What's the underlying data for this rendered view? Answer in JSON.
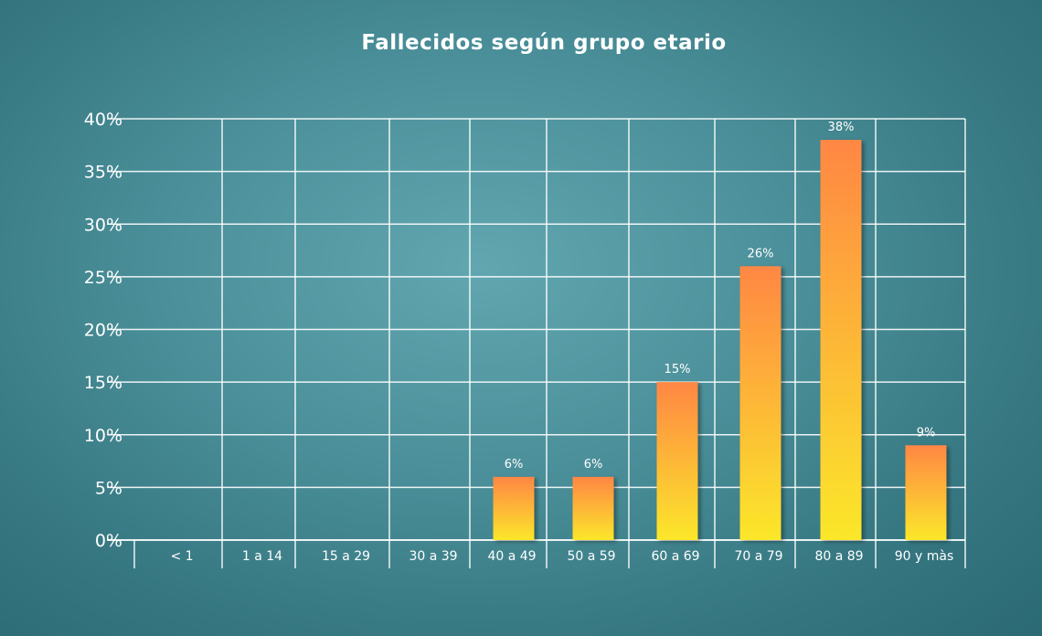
{
  "chart_data": {
    "type": "bar",
    "title": "Fallecidos según grupo etario",
    "xlabel": "",
    "ylabel": "",
    "categories": [
      "< 1",
      "1 a 14",
      "15 a 29",
      "30 a 39",
      "40 a 49",
      "50 a 59",
      "60 a 69",
      "70 a 79",
      "80 a 89",
      "90 y màs"
    ],
    "values": [
      0,
      0,
      0,
      0,
      6,
      6,
      15,
      26,
      38,
      9
    ],
    "data_labels": [
      "",
      "",
      "",
      "",
      "6%",
      "6%",
      "15%",
      "26%",
      "38%",
      "9%"
    ],
    "y_ticks": [
      "0%",
      "5%",
      "10%",
      "15%",
      "20%",
      "25%",
      "30%",
      "35%",
      "40%"
    ],
    "ylim": [
      0,
      40
    ],
    "grid": true,
    "legend": "none",
    "colors": {
      "bar_top": "#ff8744",
      "bar_bottom": "#fbe72a",
      "grid": "#ffffff",
      "text": "#ffffff"
    }
  }
}
